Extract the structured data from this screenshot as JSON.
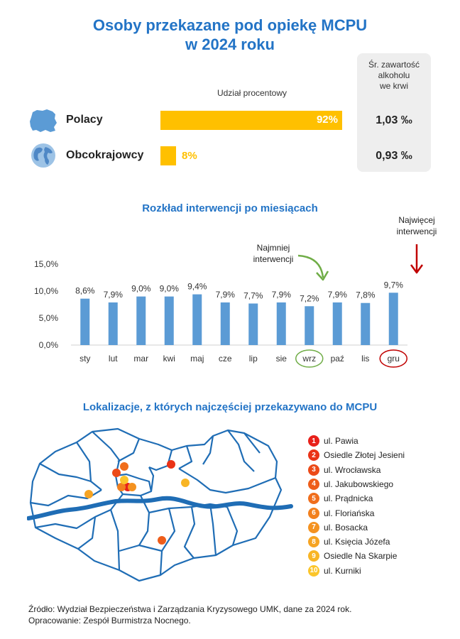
{
  "title": {
    "line1": "Osoby przekazane pod opiekę MCPU",
    "line2": "w 2024 roku"
  },
  "share_header": "Udział procentowy",
  "bac_header": {
    "line1": "Śr. zawartość",
    "line2": "alkoholu",
    "line3": "we krwi"
  },
  "groups": [
    {
      "label": "Polacy",
      "share_label": "92%",
      "share": 92,
      "bac": "1,03 ‰",
      "icon": "poland-map-icon"
    },
    {
      "label": "Obcokrajowcy",
      "share_label": "8%",
      "share": 8,
      "bac": "0,93 ‰",
      "icon": "globe-icon"
    }
  ],
  "colors": {
    "accent_blue": "#2374c6",
    "bar_blue": "#5b9bd5",
    "bar_yellow": "#ffc000",
    "min_green": "#70ad47",
    "max_red": "#c00000",
    "river": "#1f6db5"
  },
  "chart_data": {
    "type": "bar",
    "title": "Rozkład interwencji po miesiącach",
    "categories": [
      "sty",
      "lut",
      "mar",
      "kwi",
      "maj",
      "cze",
      "lip",
      "sie",
      "wrz",
      "paź",
      "lis",
      "gru"
    ],
    "values": [
      8.6,
      7.9,
      9.0,
      9.0,
      9.4,
      7.9,
      7.7,
      7.9,
      7.2,
      7.9,
      7.8,
      9.7
    ],
    "value_labels": [
      "8,6%",
      "7,9%",
      "9,0%",
      "9,0%",
      "9,4%",
      "7,9%",
      "7,7%",
      "7,9%",
      "7,2%",
      "7,9%",
      "7,8%",
      "9,7%"
    ],
    "ylim": [
      0,
      15
    ],
    "yticks": [
      0,
      5,
      10,
      15
    ],
    "ytick_labels": [
      "0,0%",
      "5,0%",
      "10,0%",
      "15,0%"
    ],
    "grid": false,
    "annotations": {
      "min": {
        "category": "wrz",
        "line1": "Najmniej",
        "line2": "interwencji"
      },
      "max": {
        "category": "gru",
        "line1": "Najwięcej",
        "line2": "interwencji"
      }
    }
  },
  "map_title": "Lokalizacje, z których najczęściej przekazywano do MCPU",
  "locations": [
    {
      "num": "1",
      "name": "ul. Pawia",
      "color": "#e8201a"
    },
    {
      "num": "2",
      "name": "Osiedle Złotej Jesieni",
      "color": "#ea3317"
    },
    {
      "num": "3",
      "name": "ul. Wrocławska",
      "color": "#ec4a18"
    },
    {
      "num": "4",
      "name": "ul. Jakubowskiego",
      "color": "#ee5d1a"
    },
    {
      "num": "5",
      "name": "ul. Prądnicka",
      "color": "#f06e1c"
    },
    {
      "num": "6",
      "name": "ul. Floriańska",
      "color": "#f2801e"
    },
    {
      "num": "7",
      "name": "ul. Bosacka",
      "color": "#f49220"
    },
    {
      "num": "8",
      "name": "ul. Księcia Józefa",
      "color": "#f6a423"
    },
    {
      "num": "9",
      "name": "Osiedle Na Skarpie",
      "color": "#f8b525"
    },
    {
      "num": "10",
      "name": "ul. Kurniki",
      "color": "#fbc52a"
    }
  ],
  "source": {
    "line1": "Źródło: Wydział Bezpieczeństwa i Zarządzania Kryzysowego UMK, dane za 2024 rok.",
    "line2": "Opracowanie: Zespół Burmistrza Nocnego."
  }
}
